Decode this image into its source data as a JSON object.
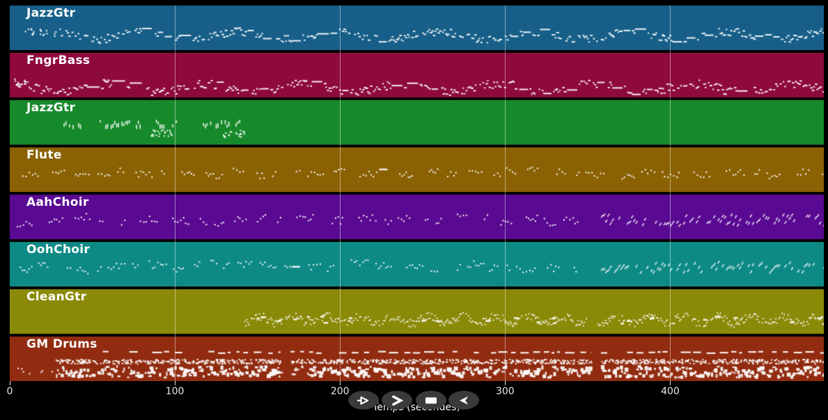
{
  "window": {
    "background": "#000000"
  },
  "chart_data": {
    "type": "midi-piano-roll",
    "title": "",
    "xlabel": "Temps (secondes)",
    "x_ticks": [
      0,
      100,
      200,
      300,
      400
    ],
    "x_range": [
      0,
      493
    ],
    "grid": "vertical-gridlines-at-ticks",
    "gridline_color": "rgba(255,255,255,0.45)",
    "tick_color": "#e8e8e8",
    "note_color": "rgba(255,255,255,0.92)",
    "tracks": [
      {
        "name": "JazzGtr",
        "color": "#175f88",
        "segments": [
          {
            "style": "scatter",
            "t": [
              9,
              15
            ],
            "band": [
              0.5,
              0.66
            ],
            "density": 1.3
          },
          {
            "style": "scatter",
            "t": [
              17,
              23
            ],
            "band": [
              0.5,
              0.66
            ],
            "density": 1.3
          },
          {
            "style": "scatter",
            "t": [
              26,
              28
            ],
            "band": [
              0.56,
              0.68
            ],
            "density": 1.5
          },
          {
            "style": "wavy",
            "t": [
              30,
              493
            ],
            "band": [
              0.5,
              0.82
            ],
            "density": 1
          }
        ]
      },
      {
        "name": "FngrBass",
        "color": "#8e0a3c",
        "segments": [
          {
            "style": "scatter",
            "t": [
              2,
              10
            ],
            "band": [
              0.56,
              0.75
            ],
            "density": 1.6
          },
          {
            "style": "wavy",
            "t": [
              3,
              493
            ],
            "band": [
              0.6,
              0.95
            ],
            "density": 1
          }
        ]
      },
      {
        "name": "JazzGtr",
        "color": "#168a2b",
        "segments": [
          {
            "style": "vtick",
            "t": [
              26,
              142
            ],
            "band": [
              0.44,
              0.66
            ],
            "density": 1
          },
          {
            "style": "scatter",
            "t": [
              84,
              98
            ],
            "band": [
              0.64,
              0.8
            ],
            "density": 1.6
          },
          {
            "style": "scatter",
            "t": [
              128,
              142
            ],
            "band": [
              0.66,
              0.82
            ],
            "density": 1.4
          }
        ]
      },
      {
        "name": "Flute",
        "color": "#8a6204",
        "segments": [
          {
            "style": "clusters",
            "t": [
              2,
              493
            ],
            "band": [
              0.46,
              0.74
            ],
            "density": 1
          }
        ]
      },
      {
        "name": "AahChoir",
        "color": "#5a0a92",
        "segments": [
          {
            "style": "clusters",
            "t": [
              2,
              344
            ],
            "band": [
              0.42,
              0.76
            ],
            "density": 1
          },
          {
            "style": "slashes",
            "t": [
              358,
              493
            ],
            "band": [
              0.42,
              0.72
            ],
            "density": 1
          }
        ]
      },
      {
        "name": "OohChoir",
        "color": "#0e8a85",
        "segments": [
          {
            "style": "clusters",
            "t": [
              2,
              344
            ],
            "band": [
              0.42,
              0.76
            ],
            "density": 1
          },
          {
            "style": "slashes",
            "t": [
              358,
              493
            ],
            "band": [
              0.42,
              0.72
            ],
            "density": 1
          }
        ]
      },
      {
        "name": "CleanGtr",
        "color": "#8a8a08",
        "segments": [
          {
            "style": "scribble",
            "t": [
              142,
              349
            ],
            "band": [
              0.5,
              0.85
            ],
            "density": 1
          },
          {
            "style": "scribble",
            "t": [
              356,
              493
            ],
            "band": [
              0.5,
              0.85
            ],
            "density": 1
          }
        ]
      },
      {
        "name": "GM Drums",
        "color": "#912c10",
        "segments": [
          {
            "style": "scatter",
            "t": [
              2,
              26
            ],
            "band": [
              0.68,
              0.82
            ],
            "density": 0.3
          },
          {
            "style": "dash",
            "t": [
              53,
              164
            ],
            "band": [
              0.31,
              0.4
            ],
            "density": 1
          },
          {
            "style": "dash",
            "t": [
              170,
              352
            ],
            "band": [
              0.31,
              0.4
            ],
            "density": 1
          },
          {
            "style": "dash",
            "t": [
              358,
              493
            ],
            "band": [
              0.31,
              0.4
            ],
            "density": 1
          },
          {
            "style": "scatter",
            "t": [
              27,
              164
            ],
            "band": [
              0.5,
              0.6
            ],
            "density": 2.2
          },
          {
            "style": "scatter",
            "t": [
              170,
              352
            ],
            "band": [
              0.5,
              0.6
            ],
            "density": 2.2
          },
          {
            "style": "scatter",
            "t": [
              358,
              493
            ],
            "band": [
              0.5,
              0.6
            ],
            "density": 2.2
          },
          {
            "style": "blob",
            "t": [
              28,
              164
            ],
            "band": [
              0.64,
              0.95
            ],
            "density": 1
          },
          {
            "style": "blob",
            "t": [
              170,
              352
            ],
            "band": [
              0.64,
              0.95
            ],
            "density": 1
          },
          {
            "style": "blob",
            "t": [
              358,
              493
            ],
            "band": [
              0.64,
              0.95
            ],
            "density": 1
          }
        ]
      }
    ]
  },
  "axis": {
    "label": "Temps (secondes)"
  },
  "controls": {
    "background": "#3a3a3a",
    "icon_color": "#ffffff",
    "buttons": [
      {
        "name": "play",
        "icon": "play-outline-icon"
      },
      {
        "name": "fast-forward",
        "icon": "fast-forward-icon"
      },
      {
        "name": "stop",
        "icon": "stop-icon"
      },
      {
        "name": "rewind",
        "icon": "rewind-icon"
      }
    ]
  }
}
